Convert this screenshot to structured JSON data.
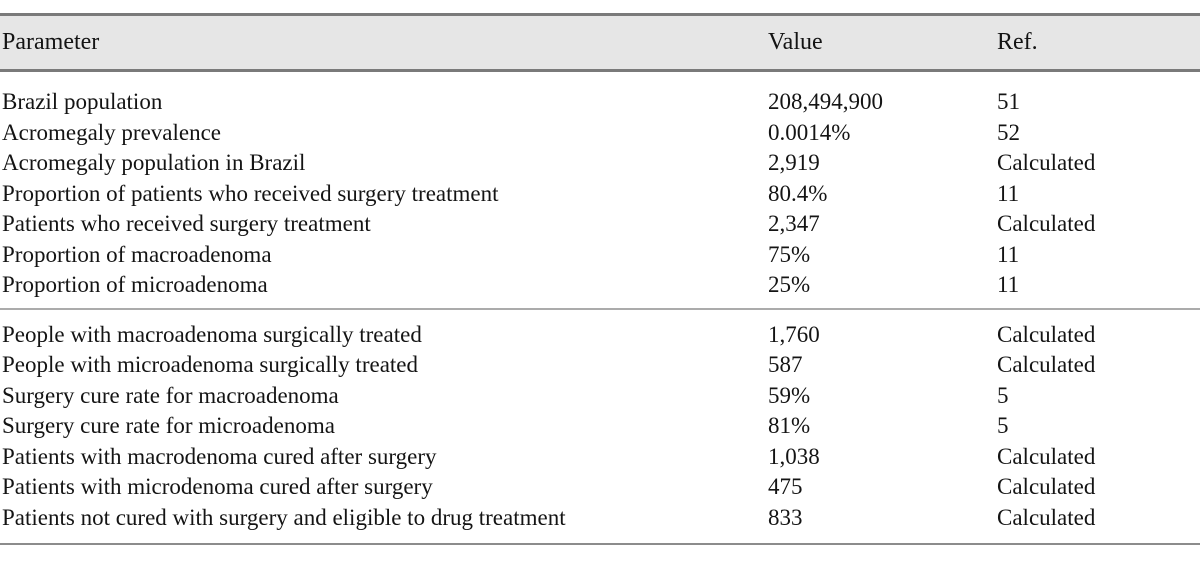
{
  "colors": {
    "header_bg": "#e6e6e6",
    "rule_dark": "#7a7a7a",
    "rule_mid": "#8c8c8c",
    "rule_light": "#ababab",
    "text": "#141414"
  },
  "chart_data": {
    "type": "table",
    "columns": [
      "Parameter",
      "Value",
      "Ref."
    ],
    "rows": [
      [
        "Brazil population",
        "208,494,900",
        "51"
      ],
      [
        "Acromegaly prevalence",
        "0.0014%",
        "52"
      ],
      [
        "Acromegaly population in Brazil",
        "2,919",
        "Calculated"
      ],
      [
        "Proportion of patients who received surgery treatment",
        "80.4%",
        "11"
      ],
      [
        "Patients who received surgery treatment",
        "2,347",
        "Calculated"
      ],
      [
        "Proportion of macroadenoma",
        "75%",
        "11"
      ],
      [
        "Proportion of microadenoma",
        "25%",
        "11"
      ],
      [
        "People with macroadenoma surgically treated",
        "1,760",
        "Calculated"
      ],
      [
        "People with microadenoma surgically treated",
        "587",
        "Calculated"
      ],
      [
        "Surgery cure rate for macroadenoma",
        "59%",
        "5"
      ],
      [
        "Surgery cure rate for microadenoma",
        "81%",
        "5"
      ],
      [
        "Patients with macrodenoma cured after surgery",
        "1,038",
        "Calculated"
      ],
      [
        "Patients with microdenoma cured after surgery",
        "475",
        "Calculated"
      ],
      [
        "Patients not cured with surgery and eligible to drug treatment",
        "833",
        "Calculated"
      ]
    ]
  },
  "table": {
    "columns": {
      "parameter": "Parameter",
      "value": "Value",
      "ref": "Ref."
    },
    "sections": [
      {
        "rows": [
          {
            "parameter": "Brazil population",
            "value": "208,494,900",
            "ref": "51"
          },
          {
            "parameter": "Acromegaly prevalence",
            "value": "0.0014%",
            "ref": "52"
          },
          {
            "parameter": "Acromegaly population in Brazil",
            "value": "2,919",
            "ref": "Calculated"
          },
          {
            "parameter": "Proportion of patients who received surgery treatment",
            "value": "80.4%",
            "ref": "11"
          },
          {
            "parameter": "Patients who received surgery treatment",
            "value": "2,347",
            "ref": "Calculated"
          },
          {
            "parameter": "Proportion of macroadenoma",
            "value": "75%",
            "ref": "11"
          },
          {
            "parameter": "Proportion of microadenoma",
            "value": "25%",
            "ref": "11"
          }
        ]
      },
      {
        "rows": [
          {
            "parameter": "People with macroadenoma surgically treated",
            "value": "1,760",
            "ref": "Calculated"
          },
          {
            "parameter": "People with microadenoma surgically treated",
            "value": "587",
            "ref": "Calculated"
          },
          {
            "parameter": "Surgery cure rate for macroadenoma",
            "value": "59%",
            "ref": "5"
          },
          {
            "parameter": "Surgery cure rate for microadenoma",
            "value": "81%",
            "ref": "5"
          },
          {
            "parameter": "Patients with macrodenoma cured after surgery",
            "value": "1,038",
            "ref": "Calculated"
          },
          {
            "parameter": "Patients with microdenoma cured after surgery",
            "value": "475",
            "ref": "Calculated"
          },
          {
            "parameter": "Patients not cured with surgery and eligible to drug treatment",
            "value": "833",
            "ref": "Calculated"
          }
        ]
      }
    ]
  }
}
